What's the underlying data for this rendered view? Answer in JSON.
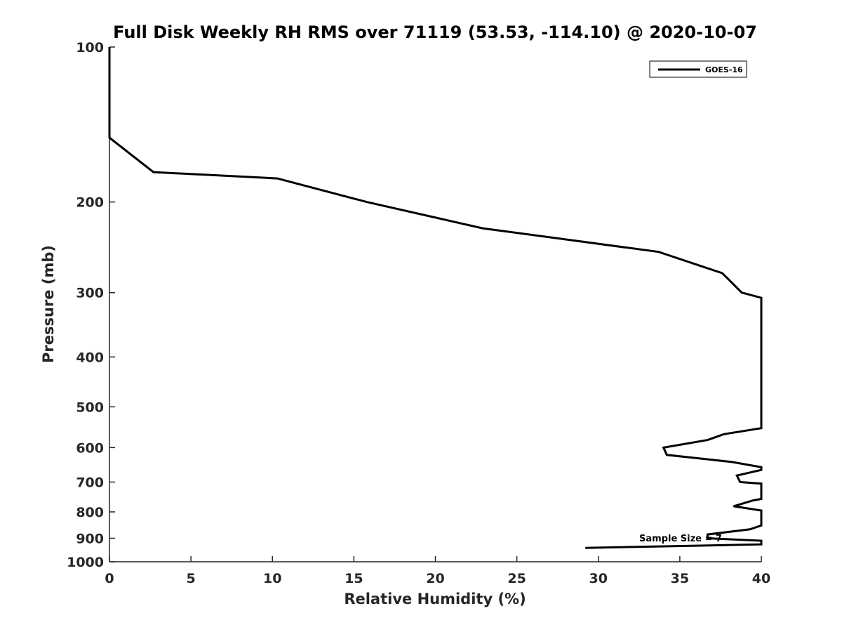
{
  "chart_data": {
    "type": "line",
    "title": "Full Disk Weekly RH RMS over 71119 (53.53, -114.10) @ 2020-10-07",
    "xlabel": "Relative Humidity (%)",
    "ylabel": "Pressure (mb)",
    "xlim": [
      0,
      40
    ],
    "ylim": [
      100,
      1000
    ],
    "yscale": "log",
    "y_reversed": true,
    "grid": false,
    "xticks": [
      0,
      5,
      10,
      15,
      20,
      25,
      30,
      35,
      40
    ],
    "xtick_labels": [
      "0",
      "5",
      "10",
      "15",
      "20",
      "25",
      "30",
      "35",
      "40"
    ],
    "yticks": [
      100,
      200,
      300,
      400,
      500,
      600,
      700,
      800,
      900,
      1000
    ],
    "ytick_labels": [
      "100",
      "200",
      "300",
      "400",
      "500",
      "600",
      "700",
      "800",
      "900",
      "1000"
    ],
    "legend_position": "top-right",
    "annotation": "Sample Size = 7",
    "series": [
      {
        "name": "GOES-16",
        "color": "#000000",
        "points": [
          {
            "x": 0.0,
            "p": 100
          },
          {
            "x": 0.0,
            "p": 125
          },
          {
            "x": 0.0,
            "p": 150
          },
          {
            "x": 2.7,
            "p": 175
          },
          {
            "x": 10.3,
            "p": 180
          },
          {
            "x": 15.8,
            "p": 200
          },
          {
            "x": 22.9,
            "p": 225
          },
          {
            "x": 33.7,
            "p": 250
          },
          {
            "x": 37.6,
            "p": 275
          },
          {
            "x": 38.1,
            "p": 285
          },
          {
            "x": 38.8,
            "p": 300
          },
          {
            "x": 40.0,
            "p": 307
          },
          {
            "x": 40.0,
            "p": 550
          },
          {
            "x": 37.7,
            "p": 565
          },
          {
            "x": 36.7,
            "p": 580
          },
          {
            "x": 34.0,
            "p": 600
          },
          {
            "x": 34.2,
            "p": 620
          },
          {
            "x": 38.2,
            "p": 640
          },
          {
            "x": 40.0,
            "p": 655
          },
          {
            "x": 40.0,
            "p": 663
          },
          {
            "x": 38.5,
            "p": 680
          },
          {
            "x": 38.7,
            "p": 700
          },
          {
            "x": 40.0,
            "p": 705
          },
          {
            "x": 40.0,
            "p": 755
          },
          {
            "x": 39.5,
            "p": 760
          },
          {
            "x": 38.3,
            "p": 780
          },
          {
            "x": 40.0,
            "p": 795
          },
          {
            "x": 40.0,
            "p": 850
          },
          {
            "x": 39.3,
            "p": 865
          },
          {
            "x": 36.7,
            "p": 885
          },
          {
            "x": 36.7,
            "p": 900
          },
          {
            "x": 40.0,
            "p": 910
          },
          {
            "x": 40.0,
            "p": 925
          },
          {
            "x": 29.2,
            "p": 940
          }
        ]
      }
    ]
  }
}
